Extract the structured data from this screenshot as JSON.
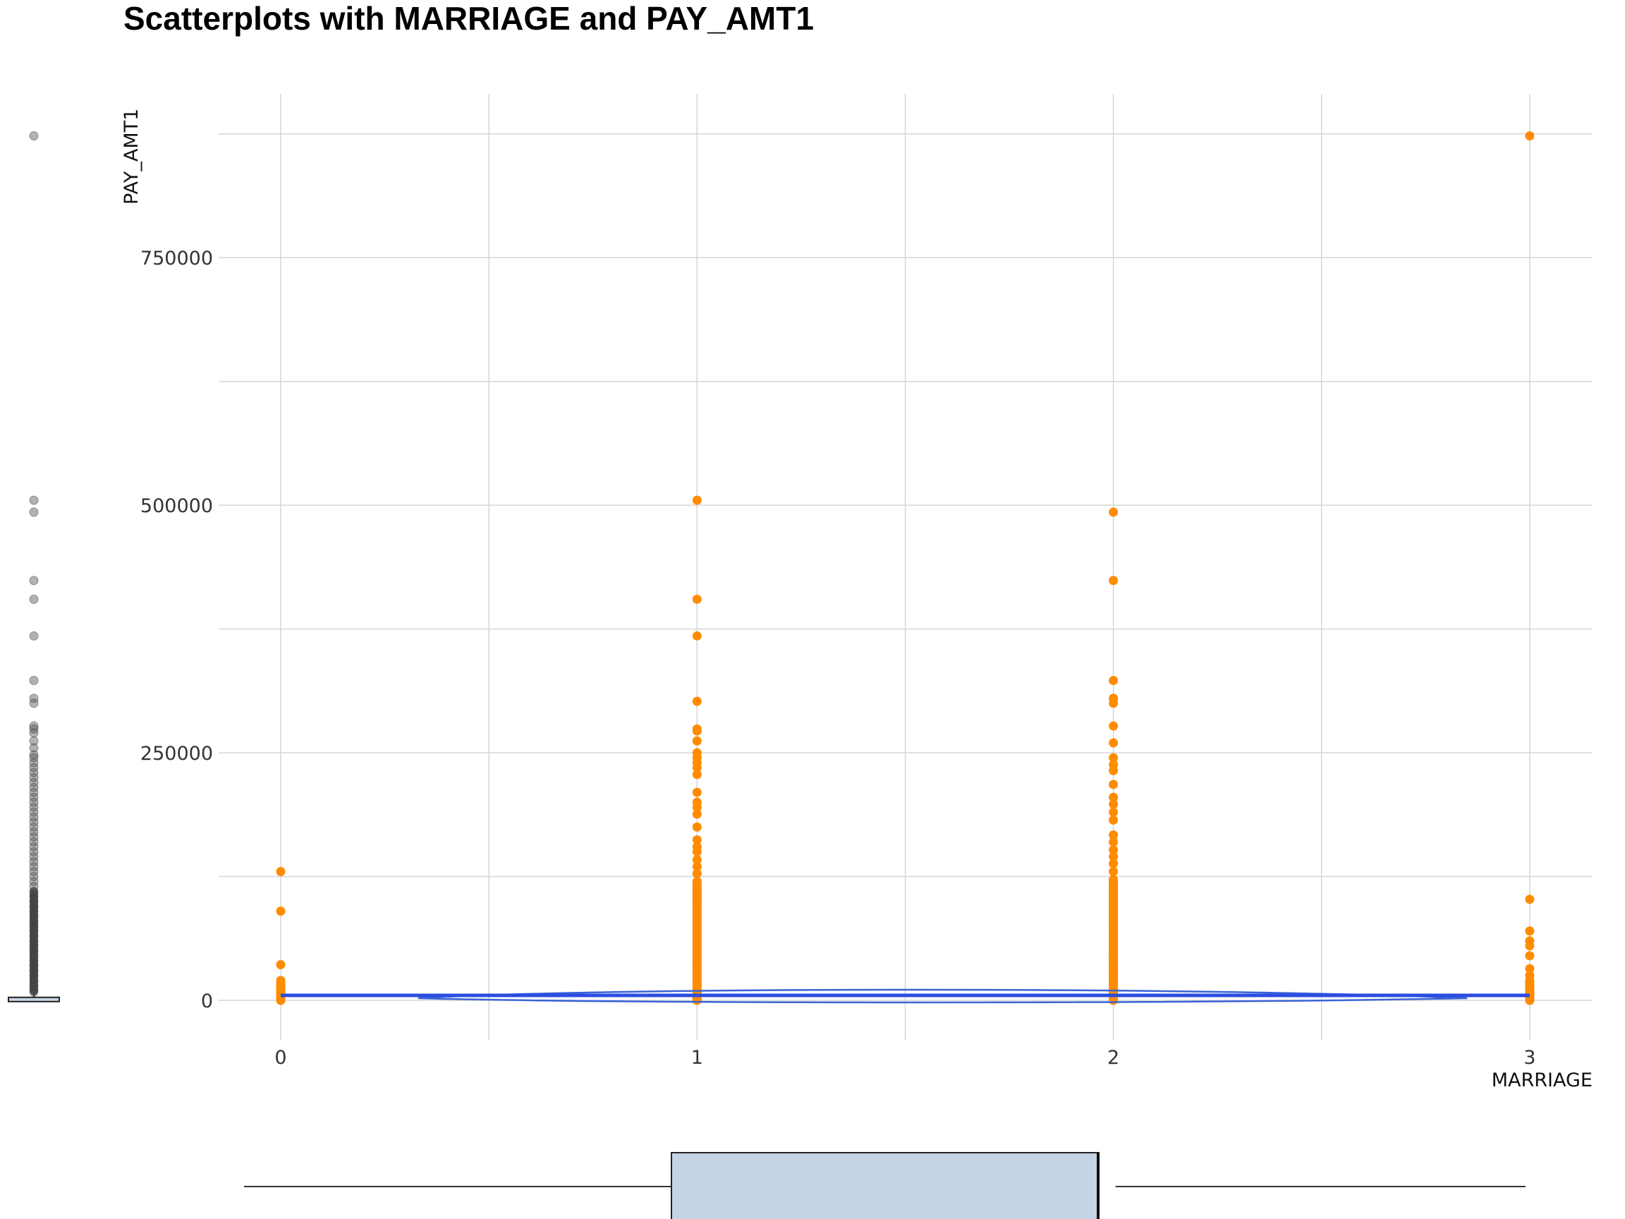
{
  "chart_data": {
    "type": "scatter",
    "title": "Scatterplots with MARRIAGE and PAY_AMT1",
    "xlabel": "MARRIAGE",
    "ylabel": "PAY_AMT1",
    "x_ticks": [
      "0",
      "1",
      "2",
      "3"
    ],
    "y_ticks": [
      "0",
      "250000",
      "500000",
      "750000"
    ],
    "xlim": [
      -0.15,
      3.15
    ],
    "ylim": [
      -30000,
      875000
    ],
    "grid": true,
    "point_color": "#ff8c00",
    "smooth_color": "#2b4de0",
    "groups": [
      {
        "x": 0,
        "values": [
          130000,
          90000,
          36000,
          20000,
          15000,
          10000,
          6000,
          3000,
          0
        ]
      },
      {
        "x": 1,
        "values": [
          505000,
          405000,
          368000,
          302000,
          274000,
          272000,
          262000,
          250000,
          245000,
          240000,
          235000,
          228000,
          210000,
          200000,
          195000,
          188000,
          175000,
          162000,
          155000,
          150000,
          142000,
          135000,
          128000,
          120000,
          112000,
          105000,
          98000,
          90000,
          82000,
          75000,
          68000,
          60000,
          52000,
          45000,
          38000,
          30000,
          22000,
          15000,
          8000,
          2000,
          0
        ]
      },
      {
        "x": 2,
        "values": [
          493000,
          424000,
          323000,
          305000,
          300000,
          277000,
          260000,
          245000,
          238000,
          232000,
          218000,
          205000,
          198000,
          190000,
          182000,
          167000,
          160000,
          152000,
          145000,
          138000,
          130000,
          122000,
          115000,
          108000,
          100000,
          92000,
          85000,
          78000,
          70000,
          62000,
          55000,
          48000,
          40000,
          32000,
          25000,
          18000,
          10000,
          3000,
          0
        ]
      },
      {
        "x": 3,
        "values": [
          873000,
          102000,
          70000,
          60000,
          55000,
          45000,
          32000,
          25000,
          20000,
          15000,
          10000,
          5000,
          0
        ]
      }
    ],
    "smooth_line": [
      [
        0,
        5000
      ],
      [
        3,
        5000
      ]
    ],
    "x_marginal_box": {
      "whisker_low": 0,
      "q1": 1,
      "q3": 2,
      "whisker_high": 3
    },
    "y_marginal_outliers": [
      873000,
      505000,
      493000,
      424000,
      405000,
      368000,
      323000,
      305000,
      300000,
      277000,
      274000,
      270000,
      262000,
      255000,
      248000,
      245000,
      240000,
      235000,
      230000,
      225000,
      220000,
      215000,
      210000,
      205000,
      200000,
      195000,
      190000,
      185000,
      180000,
      175000,
      170000,
      165000,
      160000,
      155000,
      150000,
      145000,
      140000,
      135000,
      130000,
      125000,
      120000,
      115000,
      110000,
      105000,
      100000,
      95000,
      90000,
      85000,
      80000,
      75000,
      70000,
      65000,
      60000,
      55000,
      50000,
      45000,
      40000,
      35000,
      30000,
      25000,
      20000,
      15000,
      10000
    ]
  }
}
